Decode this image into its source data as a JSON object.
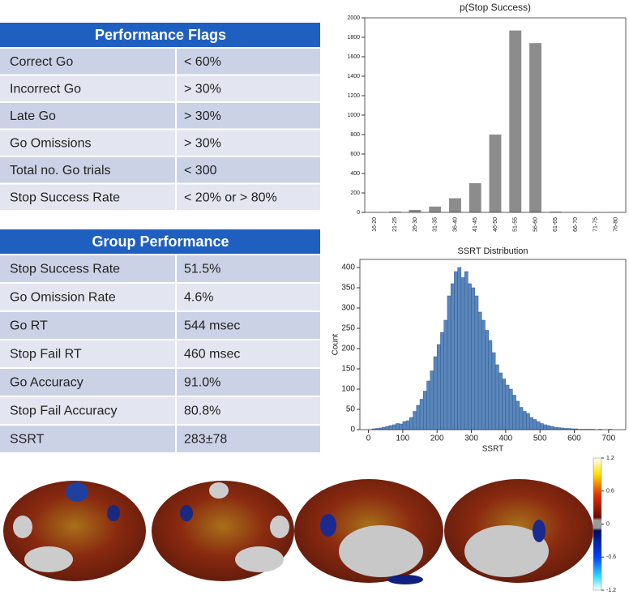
{
  "tables": [
    {
      "title": "Performance Flags",
      "rows": [
        [
          "Correct Go",
          "< 60%"
        ],
        [
          "Incorrect Go",
          "> 30%"
        ],
        [
          "Late Go",
          "> 30%"
        ],
        [
          "Go Omissions",
          "> 30%"
        ],
        [
          "Total no. Go trials",
          "< 300"
        ],
        [
          "Stop Success Rate",
          "< 20% or > 80%"
        ]
      ]
    },
    {
      "title": "Group Performance",
      "rows": [
        [
          "Stop Success Rate",
          "51.5%"
        ],
        [
          "Go Omission Rate",
          "4.6%"
        ],
        [
          "Go RT",
          "544 msec"
        ],
        [
          "Stop Fail RT",
          "460 msec"
        ],
        [
          "Go Accuracy",
          "91.0%"
        ],
        [
          "Stop Fail Accuracy",
          "80.8%"
        ],
        [
          "SSRT",
          "283±78"
        ]
      ]
    }
  ],
  "chart_data": [
    {
      "type": "bar",
      "title": "p(Stop Success)",
      "categories": [
        "16-20",
        "21-25",
        "26-30",
        "31-35",
        "36-40",
        "41-45",
        "46-50",
        "51-55",
        "56-60",
        "61-65",
        "66-70",
        "71-75",
        "76-80"
      ],
      "values": [
        2,
        8,
        25,
        60,
        145,
        300,
        800,
        1870,
        1740,
        8,
        2,
        1,
        1
      ],
      "color": "#8c8c8c",
      "ylim": [
        0,
        2000
      ],
      "yticks": [
        0,
        200,
        400,
        600,
        800,
        1000,
        1200,
        1400,
        1600,
        1800,
        2000
      ]
    },
    {
      "type": "histogram",
      "title": "SSRT Distribution",
      "xlabel": "SSRT",
      "ylabel": "Count",
      "bins": [
        10,
        20,
        30,
        40,
        50,
        60,
        70,
        80,
        90,
        100,
        110,
        120,
        130,
        140,
        150,
        160,
        170,
        180,
        190,
        200,
        210,
        220,
        230,
        240,
        250,
        260,
        270,
        280,
        290,
        300,
        310,
        320,
        330,
        340,
        350,
        360,
        370,
        380,
        390,
        400,
        410,
        420,
        430,
        440,
        450,
        460,
        470,
        480,
        490,
        500,
        510,
        520,
        530,
        540,
        550,
        560,
        570,
        580,
        590,
        600,
        610,
        620,
        630,
        640,
        650,
        660,
        670,
        680,
        690,
        700,
        710,
        720
      ],
      "values": [
        2,
        3,
        4,
        6,
        8,
        10,
        12,
        15,
        14,
        20,
        22,
        30,
        45,
        60,
        75,
        95,
        120,
        145,
        180,
        210,
        240,
        270,
        330,
        360,
        390,
        400,
        375,
        390,
        360,
        350,
        330,
        290,
        270,
        245,
        220,
        190,
        160,
        140,
        125,
        110,
        100,
        85,
        70,
        55,
        45,
        40,
        30,
        25,
        20,
        15,
        12,
        10,
        8,
        6,
        5,
        4,
        3,
        3,
        2,
        2,
        1,
        1,
        1,
        1,
        1,
        0,
        1,
        0,
        0,
        1,
        0
      ],
      "color": "#5a86bb",
      "xlim": [
        -25,
        750
      ],
      "xticks": [
        0,
        100,
        200,
        300,
        400,
        500,
        600,
        700
      ],
      "ylim": [
        0,
        420
      ],
      "yticks": [
        0,
        50,
        100,
        150,
        200,
        250,
        300,
        350,
        400
      ]
    }
  ],
  "colorbar": {
    "lim": [
      -1.2,
      1.2
    ],
    "ticks": [
      1.2,
      0.6,
      0,
      -0.6,
      -1.2
    ]
  }
}
